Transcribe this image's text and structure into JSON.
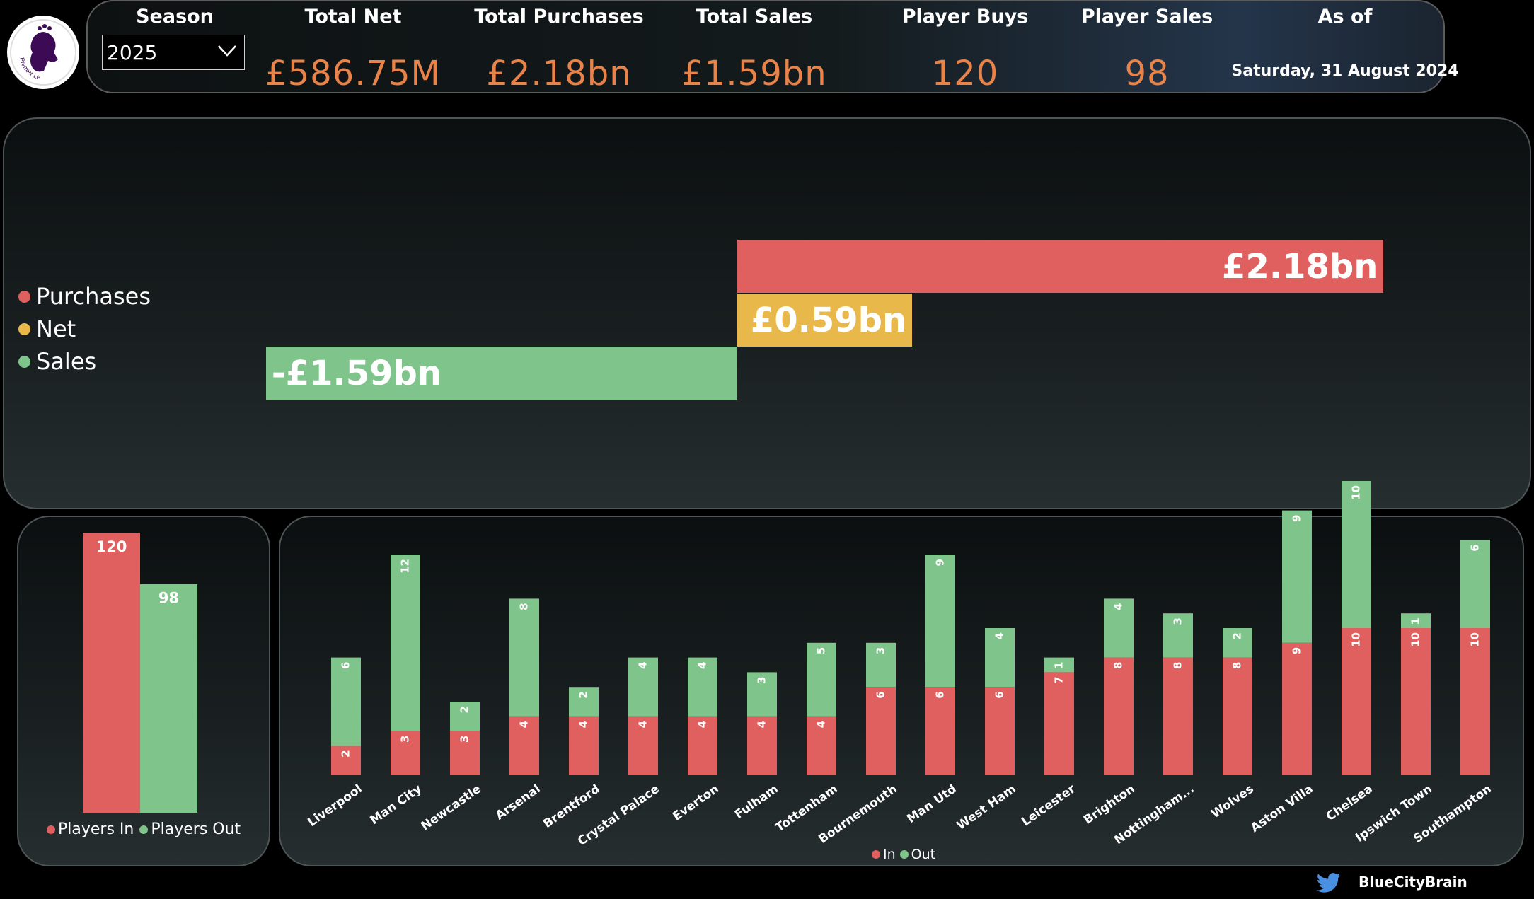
{
  "kpis": {
    "season_label": "Season",
    "season_value": "2025",
    "total_net_label": "Total Net",
    "total_net_value": "£586.75M",
    "total_purchases_label": "Total Purchases",
    "total_purchases_value": "£2.18bn",
    "total_sales_label": "Total Sales",
    "total_sales_value": "£1.59bn",
    "player_buys_label": "Player Buys",
    "player_buys_value": "120",
    "player_sales_label": "Player Sales",
    "player_sales_value": "98",
    "as_of_label": "As of",
    "as_of_value": "Saturday, 31 August 2024"
  },
  "colors": {
    "purchases": "#e06060",
    "net": "#e8b84a",
    "sales": "#7fc48a",
    "kpi_value": "#e8834a"
  },
  "logo": {
    "text": "Premier League"
  },
  "footer": {
    "handle": "BlueCityBrain",
    "icon": "twitter-bird-icon"
  },
  "chart_data": [
    {
      "type": "bar",
      "orientation": "horizontal-waterfall",
      "legend": [
        "Purchases",
        "Net",
        "Sales"
      ],
      "legend_position": "left",
      "categories": [
        "Purchases",
        "Net",
        "Sales"
      ],
      "values": [
        2.18,
        0.59,
        -1.59
      ],
      "data_labels": [
        "£2.18bn",
        "£0.59bn",
        "-£1.59bn"
      ],
      "unit": "£bn"
    },
    {
      "type": "bar",
      "categories": [
        "Players In",
        "Players Out"
      ],
      "values": [
        120,
        98
      ],
      "data_labels": [
        "120",
        "98"
      ],
      "legend": [
        "Players In",
        "Players Out"
      ],
      "legend_position": "bottom"
    },
    {
      "type": "bar",
      "stacked": true,
      "categories": [
        "Liverpool",
        "Man City",
        "Newcastle",
        "Arsenal",
        "Brentford",
        "Crystal Palace",
        "Everton",
        "Fulham",
        "Tottenham",
        "Bournemouth",
        "Man Utd",
        "West Ham",
        "Leicester",
        "Brighton",
        "Nottingham...",
        "Wolves",
        "Aston Villa",
        "Chelsea",
        "Ipswich Town",
        "Southampton"
      ],
      "series": [
        {
          "name": "In",
          "values": [
            2,
            3,
            3,
            4,
            4,
            4,
            4,
            4,
            4,
            6,
            6,
            6,
            7,
            8,
            8,
            8,
            9,
            10,
            10,
            10
          ]
        },
        {
          "name": "Out",
          "values": [
            6,
            12,
            2,
            8,
            2,
            4,
            4,
            3,
            5,
            3,
            9,
            4,
            1,
            4,
            3,
            2,
            9,
            10,
            1,
            6
          ]
        }
      ],
      "legend_position": "bottom"
    }
  ]
}
